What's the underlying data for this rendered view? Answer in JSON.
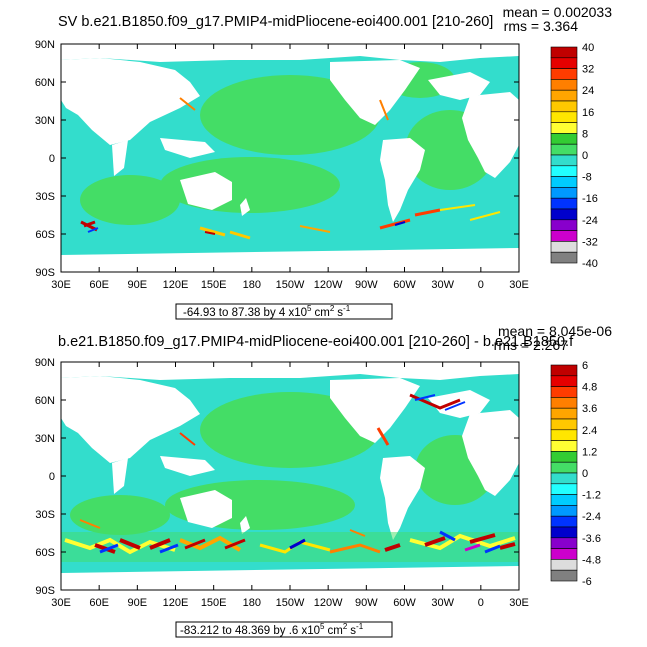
{
  "colors": {
    "ocean": "#33ddcc",
    "ocean_alt": "#44dd66",
    "land": "#ffffff",
    "frame": "#000000"
  },
  "chart_data": [
    {
      "type": "heatmap",
      "title_left": "SV b.e21.B1850.f09_g17.PMIP4-midPliocene-eoi400.001  [210-260]",
      "stat_mean": "mean = 0.002033",
      "stat_rms": "rms = 3.364",
      "xticks": [
        "30E",
        "60E",
        "90E",
        "120E",
        "150E",
        "180",
        "150W",
        "120W",
        "90W",
        "60W",
        "30W",
        "0",
        "30E"
      ],
      "yticks": [
        "90N",
        "60N",
        "30N",
        "0",
        "30S",
        "60S",
        "90S"
      ],
      "colorbar_labels": [
        "40",
        "32",
        "24",
        "16",
        "8",
        "0",
        "-8",
        "-16",
        "-24",
        "-32",
        "-40"
      ],
      "colorbar_colors": [
        "#c00000",
        "#e60000",
        "#ff3c00",
        "#ff7f00",
        "#ffa500",
        "#ffc800",
        "#ffe600",
        "#ffff33",
        "#33cc33",
        "#44dd66",
        "#33ddcc",
        "#22ffff",
        "#00ccff",
        "#0099ff",
        "#0033ff",
        "#0000cc",
        "#8800cc",
        "#cc00cc",
        "#dddddd",
        "#808080"
      ],
      "range_text": "-64.93 to 87.38 by 4 x10",
      "range_exp": "5",
      "range_units": "cm",
      "range_units_exp": "2",
      "range_s": "s",
      "range_s_exp": "-1",
      "ylim": [
        -90,
        90
      ],
      "xlim_label": "30E to 30E"
    },
    {
      "type": "heatmap",
      "title_left": "b.e21.B1850.f09_g17.PMIP4-midPliocene-eoi400.001  [210-260]  - b.e21.B1850.f",
      "stat_mean": "mean = 8.045e-06",
      "stat_rms": "rms = 2.267",
      "xticks": [
        "30E",
        "60E",
        "90E",
        "120E",
        "150E",
        "180",
        "150W",
        "120W",
        "90W",
        "60W",
        "30W",
        "0",
        "30E"
      ],
      "yticks": [
        "90N",
        "60N",
        "30N",
        "0",
        "30S",
        "60S",
        "90S"
      ],
      "colorbar_labels": [
        "6",
        "4.8",
        "3.6",
        "2.4",
        "1.2",
        "0",
        "-1.2",
        "-2.4",
        "-3.6",
        "-4.8",
        "-6"
      ],
      "colorbar_colors": [
        "#c00000",
        "#e60000",
        "#ff3c00",
        "#ff7f00",
        "#ffa500",
        "#ffc800",
        "#ffe600",
        "#ffff33",
        "#33cc33",
        "#44dd66",
        "#33ddcc",
        "#22ffff",
        "#00ccff",
        "#0099ff",
        "#0033ff",
        "#0000cc",
        "#8800cc",
        "#cc00cc",
        "#dddddd",
        "#808080"
      ],
      "range_text": "-83.212 to 48.369 by .6 x10",
      "range_exp": "5",
      "range_units": "cm",
      "range_units_exp": "2",
      "range_s": "s",
      "range_s_exp": "-1",
      "ylim": [
        -90,
        90
      ],
      "xlim_label": "30E to 30E"
    }
  ]
}
